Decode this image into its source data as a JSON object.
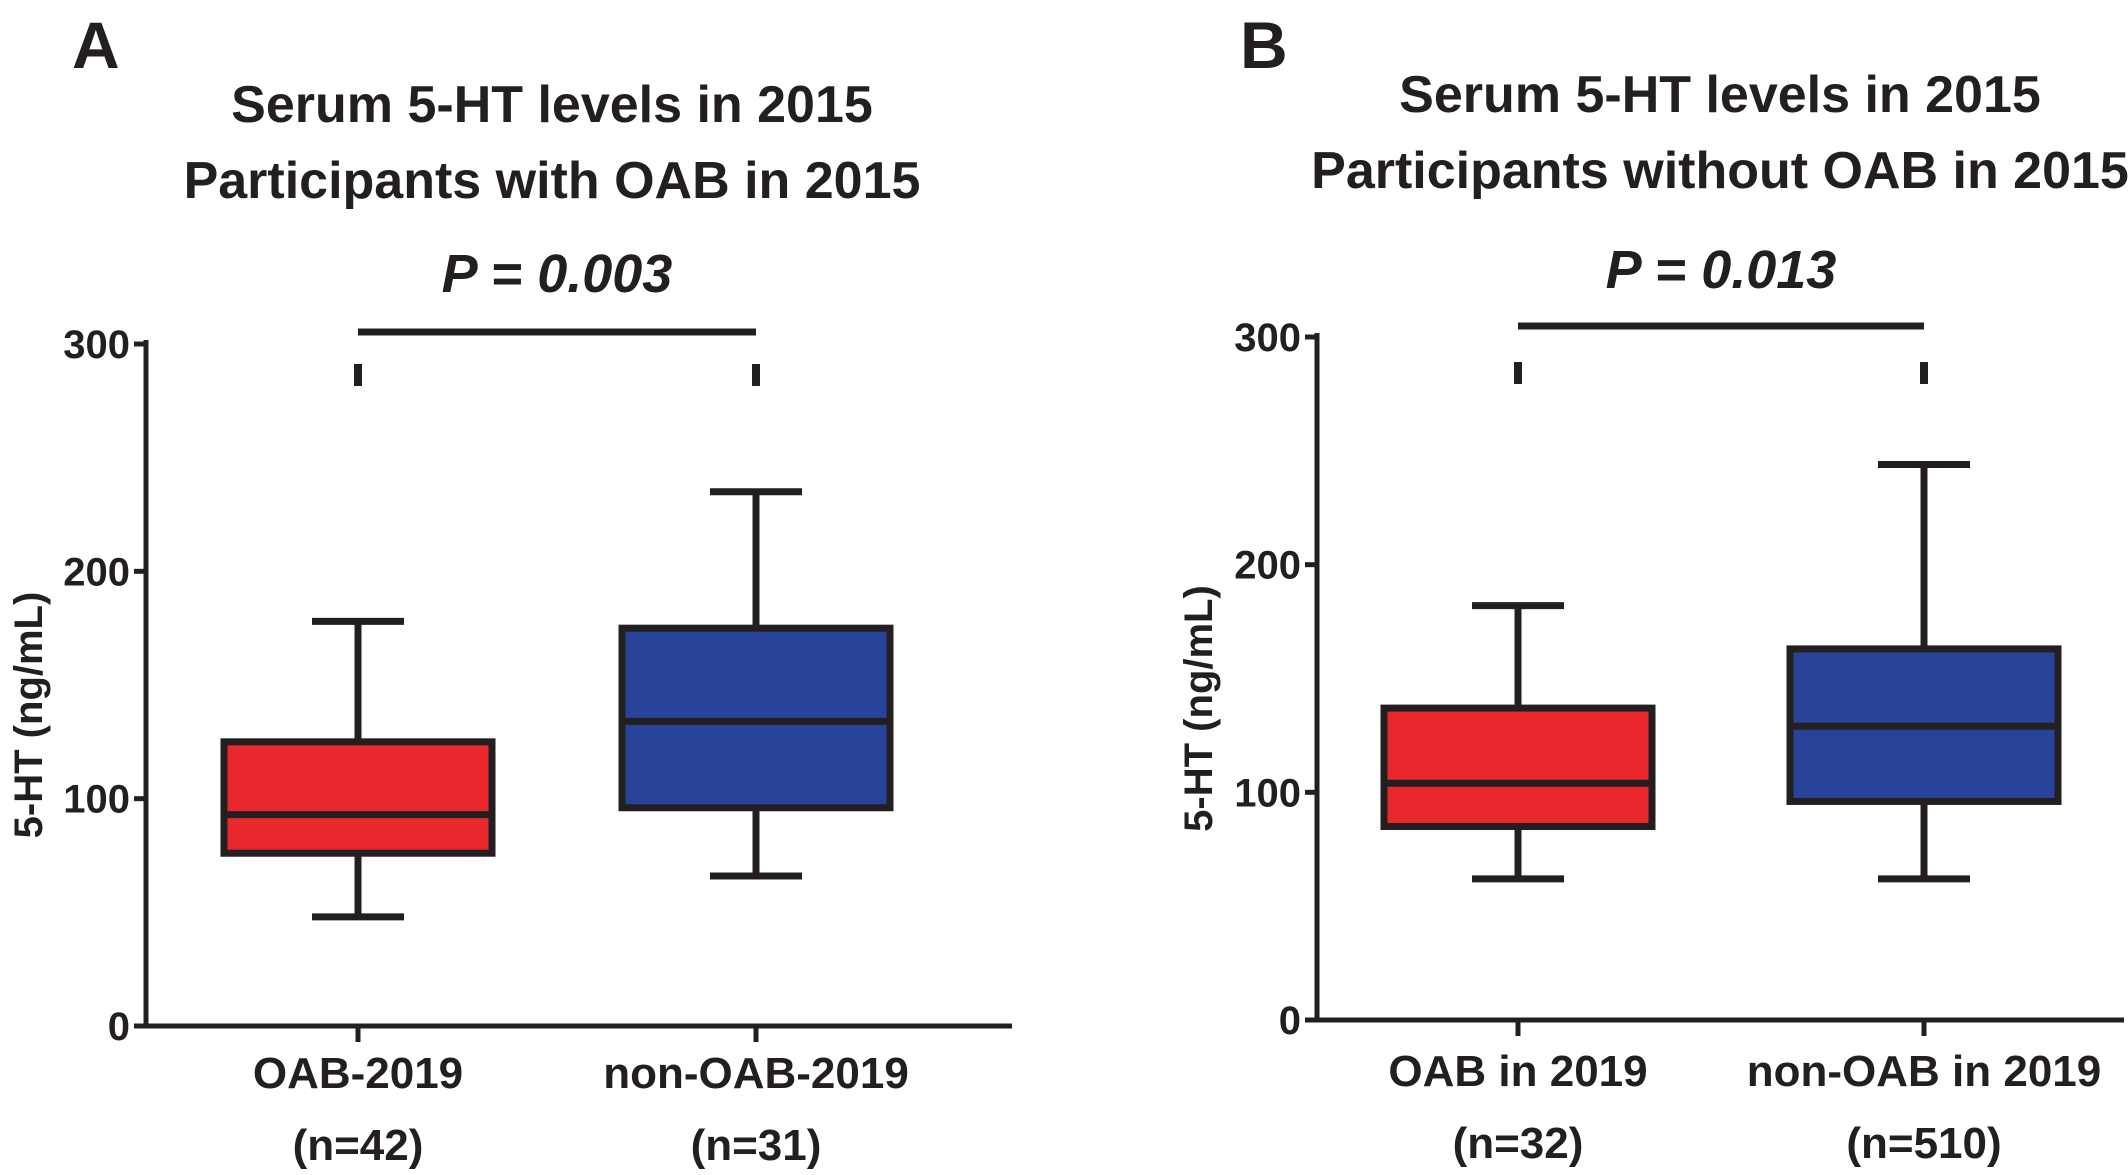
{
  "chart_data": [
    {
      "type": "box",
      "panel_letter": "A",
      "title_lines": [
        "Serum 5-HT levels in 2015",
        "Participants with OAB in 2015"
      ],
      "p_value": "P = 0.003",
      "ylabel": "5-HT (ng/mL)",
      "ylim": [
        0,
        300
      ],
      "yticks": [
        0,
        100,
        200,
        300
      ],
      "categories": [
        {
          "label": "OAB-2019",
          "n_label": "(n=42)",
          "color": "#e8282d",
          "min": 48,
          "q1": 76,
          "median": 93,
          "q3": 125,
          "max": 178
        },
        {
          "label": "non-OAB-2019",
          "n_label": "(n=31)",
          "color": "#27449a",
          "min": 66,
          "q1": 96,
          "median": 134,
          "q3": 175,
          "max": 235
        }
      ],
      "grid": false,
      "legend": "none"
    },
    {
      "type": "box",
      "panel_letter": "B",
      "title_lines": [
        "Serum 5-HT levels in 2015",
        "Participants without OAB in 2015"
      ],
      "p_value": "P = 0.013",
      "ylabel": "5-HT (ng/mL)",
      "ylim": [
        0,
        300
      ],
      "yticks": [
        0,
        100,
        200,
        300
      ],
      "categories": [
        {
          "label": "OAB in 2019",
          "n_label": "(n=32)",
          "color": "#e8282d",
          "min": 62,
          "q1": 85,
          "median": 104,
          "q3": 137,
          "max": 182
        },
        {
          "label": "non-OAB in 2019",
          "n_label": "(n=510)",
          "color": "#27449a",
          "min": 62,
          "q1": 96,
          "median": 129,
          "q3": 163,
          "max": 244
        }
      ],
      "grid": false,
      "legend": "none"
    }
  ]
}
